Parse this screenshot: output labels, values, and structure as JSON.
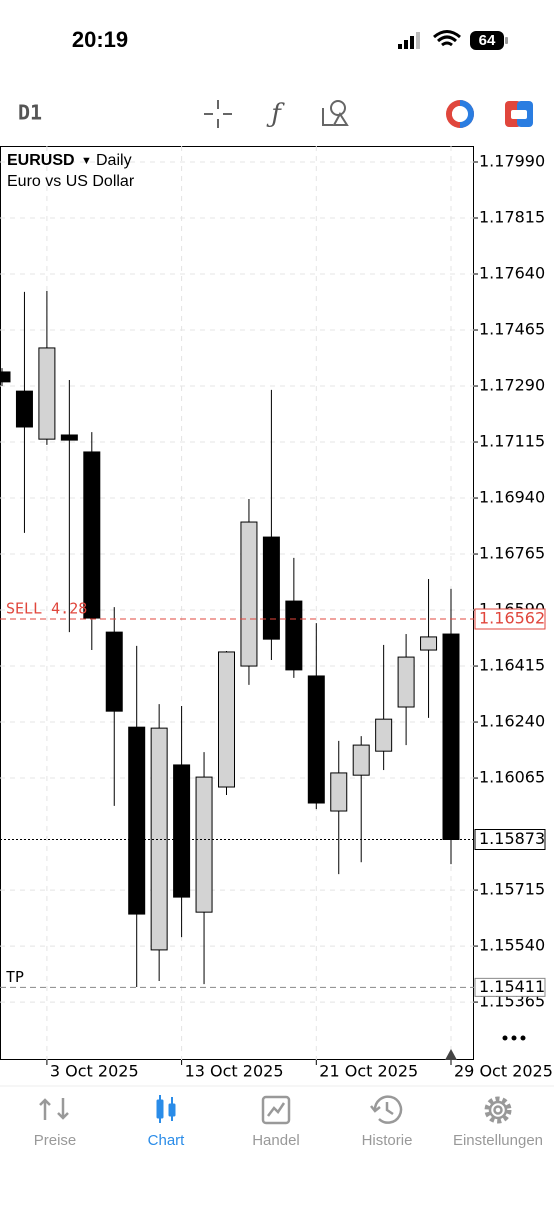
{
  "status_bar": {
    "time": "20:19",
    "battery": "64"
  },
  "toolbar": {
    "timeframe": "D1"
  },
  "chart_data": {
    "type": "candlestick",
    "symbol": "EURUSD",
    "period": "Daily",
    "description": "Euro vs US Dollar",
    "open": [
      1.17334,
      1.17274,
      1.17124,
      1.17137,
      1.17084,
      1.16521,
      1.16224,
      1.15528,
      1.16106,
      1.15646,
      1.16037,
      1.16415,
      1.16818,
      1.16618,
      1.16384,
      1.15962,
      1.16074,
      1.16149,
      1.16287,
      1.16465,
      1.16515
    ],
    "high": [
      1.17346,
      1.17584,
      1.17587,
      1.17309,
      1.17146,
      1.16599,
      1.16478,
      1.16296,
      1.1629,
      1.16146,
      1.16462,
      1.16937,
      1.17278,
      1.16753,
      1.16549,
      1.16181,
      1.16196,
      1.16481,
      1.16515,
      1.16687,
      1.16656
    ],
    "low": [
      1.1729,
      1.16831,
      1.17106,
      1.16521,
      1.16465,
      1.15978,
      1.15412,
      1.15431,
      1.15568,
      1.15421,
      1.16012,
      1.16356,
      1.16434,
      1.16378,
      1.15968,
      1.15765,
      1.15802,
      1.1609,
      1.16168,
      1.16253,
      1.15796
    ],
    "close": [
      1.17303,
      1.17162,
      1.17409,
      1.17121,
      1.16565,
      1.16274,
      1.1564,
      1.16221,
      1.15693,
      1.16068,
      1.16459,
      1.16865,
      1.16499,
      1.16403,
      1.15987,
      1.16081,
      1.16168,
      1.16249,
      1.16443,
      1.16506,
      1.15873
    ],
    "ylim": [
      1.15184,
      1.1804
    ],
    "yticks": [
      {
        "value": 1.1799,
        "label": "1.17990"
      },
      1.17815,
      {
        "value": 1.1764,
        "label": "1.17640"
      },
      1.17465,
      {
        "value": 1.1729,
        "label": "1.17290"
      },
      1.17115,
      {
        "value": 1.1694,
        "label": "1.16940"
      },
      1.16765,
      {
        "value": 1.1659,
        "label": "1.16590"
      },
      1.16415,
      {
        "value": 1.1624,
        "label": "1.16240"
      },
      1.16065,
      1.15715,
      {
        "value": 1.1554,
        "label": "1.15540"
      },
      1.15365
    ],
    "xticks": [
      {
        "value": 2,
        "label": "3 Oct 2025"
      },
      {
        "value": 8,
        "label": "13 Oct 2025"
      },
      {
        "value": 14,
        "label": "21 Oct 2025"
      },
      {
        "value": 20,
        "label": "29 Oct 2025"
      }
    ],
    "grid": true,
    "up_color": "#d3d3d3",
    "down_color": "#000000",
    "current_price": 1.15873,
    "order": {
      "label": "SELL 4.28",
      "price": 1.16562,
      "color": "#e0463c"
    },
    "take_profit": {
      "label": "TP",
      "price": 1.15411,
      "color": "#888888"
    }
  },
  "tabs": [
    "Preise",
    "Chart",
    "Handel",
    "Historie",
    "Einstellungen"
  ],
  "active_tab": 1
}
